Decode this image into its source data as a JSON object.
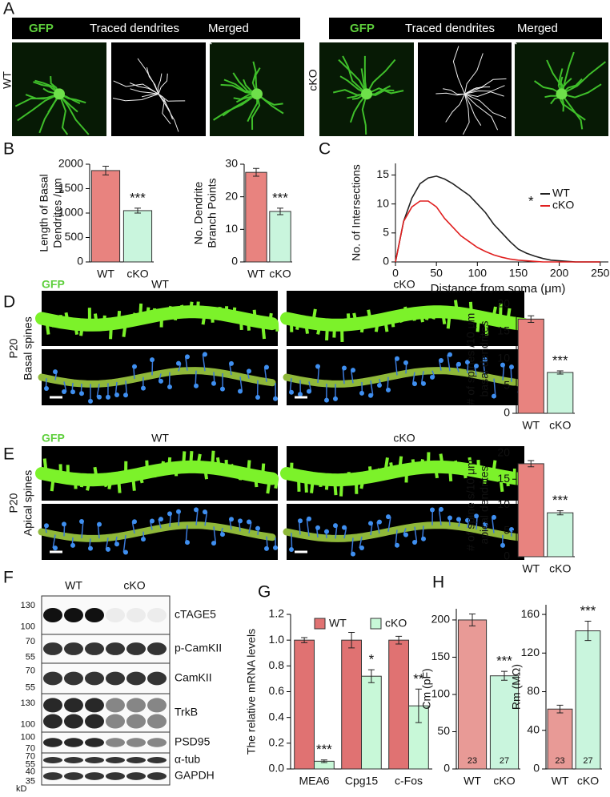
{
  "figure": {
    "panel_labels": [
      "A",
      "B",
      "C",
      "D",
      "E",
      "F",
      "G",
      "H"
    ],
    "a": {
      "headers": [
        "GFP",
        "Traced dendrites",
        "Merged"
      ],
      "row_labels": [
        "WT",
        "cKO"
      ]
    },
    "spines": {
      "marker": "GFP",
      "columns": [
        "WT",
        "cKO"
      ],
      "age": "P20",
      "rows": [
        "Basal spines",
        "Apical spines"
      ]
    },
    "blot": {
      "groups": [
        "WT",
        "cKO"
      ],
      "proteins": [
        "cTAGE5",
        "p-CamKII",
        "CamKII",
        "TrkB",
        "PSD95",
        "α-tub",
        "GAPDH"
      ],
      "markers": [
        130,
        100,
        70,
        55,
        70,
        55,
        130,
        100,
        100,
        70,
        70,
        55,
        40,
        35
      ],
      "unit": "kD"
    }
  },
  "chart_data": [
    {
      "type": "bar",
      "ylabel": [
        "Length of Basal",
        "Dendrites /μm"
      ],
      "categories": [
        "WT",
        "cKO"
      ],
      "values": [
        1870,
        1050
      ],
      "errors": [
        90,
        50
      ],
      "colors": [
        "#e8837f",
        "#c9f5dd"
      ],
      "ylim": [
        0,
        2000
      ],
      "yticks": [
        0,
        500,
        1000,
        1500,
        2000
      ],
      "annotations": [
        "***"
      ]
    },
    {
      "type": "bar",
      "ylabel": [
        "No. Dendrite",
        "Branch Points"
      ],
      "categories": [
        "WT",
        "cKO"
      ],
      "values": [
        27.5,
        15.5
      ],
      "errors": [
        1.2,
        1
      ],
      "colors": [
        "#e8837f",
        "#c9f5dd"
      ],
      "ylim": [
        0,
        30
      ],
      "yticks": [
        0,
        10,
        20,
        30
      ],
      "annotations": [
        "***"
      ]
    },
    {
      "type": "line",
      "xlabel": "Distance from soma (μm)",
      "ylabel": [
        "No. of Intersections"
      ],
      "x": [
        0,
        10,
        20,
        30,
        40,
        50,
        60,
        70,
        80,
        90,
        100,
        110,
        120,
        130,
        140,
        150,
        160,
        170,
        180,
        190,
        200,
        210,
        220,
        230,
        240,
        250
      ],
      "series": [
        {
          "name": "WT",
          "color": "#222222",
          "values": [
            0,
            7,
            11,
            13.5,
            14.5,
            14.8,
            14.3,
            13.5,
            12.5,
            11.5,
            10,
            8.5,
            6.5,
            5,
            3.5,
            2.2,
            1.5,
            1,
            0.6,
            0.3,
            0.2,
            0.1,
            0,
            0,
            0,
            0
          ]
        },
        {
          "name": "cKO",
          "color": "#e02020",
          "values": [
            0,
            7,
            9.5,
            10.5,
            10.5,
            9.5,
            7.5,
            6,
            4.5,
            3.5,
            2.5,
            1.8,
            1.2,
            0.8,
            0.5,
            0.3,
            0.2,
            0.1,
            0,
            0,
            0,
            0,
            0,
            0,
            0,
            0
          ]
        }
      ],
      "xlim": [
        0,
        260
      ],
      "xticks": [
        0,
        50,
        100,
        150,
        200,
        250
      ],
      "ylim": [
        0,
        17
      ],
      "yticks": [
        0,
        5,
        10,
        15
      ],
      "annotations": [
        "*"
      ]
    },
    {
      "type": "bar",
      "ylabel": [
        "# of spines /10 μm",
        "basal dendrites"
      ],
      "categories": [
        "WT",
        "cKO"
      ],
      "values": [
        17.3,
        7.5
      ],
      "errors": [
        0.6,
        0.3
      ],
      "colors": [
        "#e8837f",
        "#c9f5dd"
      ],
      "ylim": [
        0,
        20
      ],
      "yticks": [
        0,
        5,
        10,
        15,
        20
      ],
      "annotations": [
        "***"
      ]
    },
    {
      "type": "bar",
      "ylabel": [
        "# of spine s/10 μm",
        "apical dendrites"
      ],
      "categories": [
        "WT",
        "cKO"
      ],
      "values": [
        18,
        8.5
      ],
      "errors": [
        0.6,
        0.4
      ],
      "colors": [
        "#e8837f",
        "#c9f5dd"
      ],
      "ylim": [
        0,
        20
      ],
      "yticks": [
        0,
        5,
        10,
        15,
        20
      ],
      "annotations": [
        "***"
      ]
    },
    {
      "type": "bar",
      "ylabel": [
        "The relative mRNA levels"
      ],
      "categories": [
        "MEA6",
        "Cpg15",
        "c-Fos"
      ],
      "series": [
        {
          "name": "WT",
          "color": "#e07272",
          "values": [
            1,
            1,
            1
          ],
          "errors": [
            0.02,
            0.06,
            0.03
          ]
        },
        {
          "name": "cKO",
          "color": "#c8f8d8",
          "values": [
            0.06,
            0.72,
            0.49
          ],
          "errors": [
            0.01,
            0.05,
            0.13
          ]
        }
      ],
      "ylim": [
        0,
        1.2
      ],
      "yticks": [
        {
          "value": 0,
          "label": "0.0"
        },
        0.2,
        0.4,
        0.6,
        0.8,
        {
          "value": 1,
          "label": "1.0"
        },
        1.2
      ],
      "annotations": [
        "***",
        "*",
        "**"
      ]
    },
    {
      "type": "bar",
      "ylabel": [
        "Cm (pF)"
      ],
      "categories": [
        "WT",
        "cKO"
      ],
      "values": [
        200,
        125
      ],
      "errors": [
        8,
        6
      ],
      "colors": [
        "#e89a96",
        "#c9f5dd"
      ],
      "n": [
        23,
        27
      ],
      "ylim": [
        0,
        215
      ],
      "yticks": [
        0,
        50,
        100,
        150,
        200
      ],
      "annotations": [
        "***"
      ]
    },
    {
      "type": "bar",
      "ylabel": [
        "Rm (MΩ)"
      ],
      "categories": [
        "WT",
        "cKO"
      ],
      "values": [
        62,
        143
      ],
      "errors": [
        4,
        10
      ],
      "colors": [
        "#e89a96",
        "#c9f5dd"
      ],
      "n": [
        23,
        27
      ],
      "ylim": [
        0,
        170
      ],
      "yticks": [
        0,
        40,
        80,
        120,
        160
      ],
      "annotations": [
        "***"
      ]
    }
  ]
}
